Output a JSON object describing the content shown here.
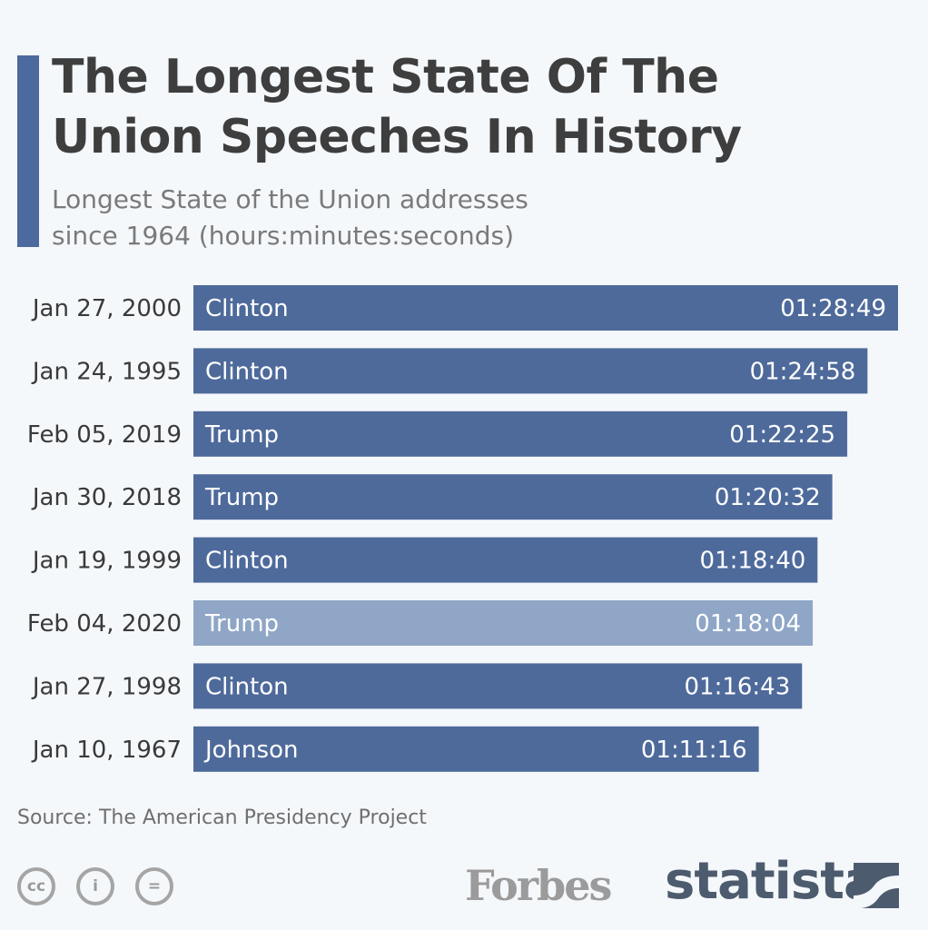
{
  "header": {
    "title_line1": "The Longest State Of The",
    "title_line2": "Union Speeches In History",
    "subtitle_line1": "Longest State of the Union addresses",
    "subtitle_line2": "since 1964 (hours:minutes:seconds)"
  },
  "footer": {
    "source": "Source: The American Presidency Project",
    "forbes": "Forbes",
    "statista": "statista",
    "cc_icons": [
      "cc-icon",
      "by-icon",
      "nd-icon"
    ]
  },
  "colors": {
    "bar": "#4e6a9b",
    "highlight": "#8fa6c6",
    "accent": "#4d6a9e"
  },
  "chart_data": {
    "type": "bar",
    "orientation": "horizontal",
    "title": "The Longest State Of The Union Speeches In History",
    "subtitle": "Longest State of the Union addresses since 1964 (hours:minutes:seconds)",
    "categories": [
      "Jan 27, 2000",
      "Jan 24, 1995",
      "Feb 05, 2019",
      "Jan 30, 2018",
      "Jan 19, 1999",
      "Feb 04, 2020",
      "Jan 27, 1998",
      "Jan 10, 1967"
    ],
    "presidents": [
      "Clinton",
      "Clinton",
      "Trump",
      "Trump",
      "Clinton",
      "Trump",
      "Clinton",
      "Johnson"
    ],
    "labels": [
      "01:28:49",
      "01:24:58",
      "01:22:25",
      "01:20:32",
      "01:18:40",
      "01:18:04",
      "01:16:43",
      "01:11:16"
    ],
    "values_seconds": [
      5329,
      5098,
      4945,
      4832,
      4720,
      4684,
      4603,
      4276
    ],
    "highlighted": [
      false,
      false,
      false,
      false,
      false,
      true,
      false,
      false
    ],
    "xlim_seconds": [
      0,
      5329
    ],
    "grid": false
  }
}
